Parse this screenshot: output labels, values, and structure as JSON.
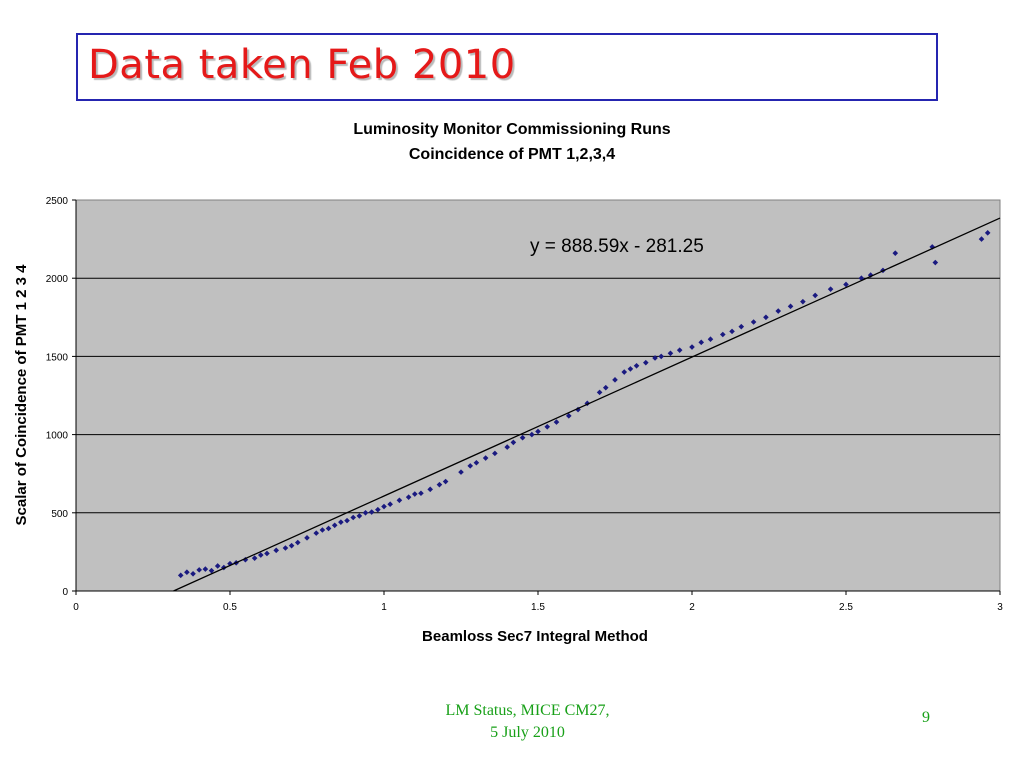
{
  "slide": {
    "title": "Data taken Feb 2010",
    "footer_line1": "LM Status, MICE CM27,",
    "footer_line2": "5 July 2010",
    "page_number": "9"
  },
  "colors": {
    "title": "#e51919",
    "title_border": "#2525b0",
    "plot_background": "#c0c0c0",
    "points": "#1a1a80",
    "footer": "#18a018"
  },
  "chart_data": {
    "type": "scatter",
    "title": "Luminosity Monitor Commissioning Runs",
    "subtitle": "Coincidence of PMT 1,2,3,4",
    "xlabel": "Beamloss Sec7 Integral Method",
    "ylabel": "Scalar of Coincidence of PMT 1 2 3 4",
    "xlim": [
      0,
      3
    ],
    "ylim": [
      0,
      2500
    ],
    "xticks": [
      0,
      0.5,
      1,
      1.5,
      2,
      2.5,
      3
    ],
    "xtick_labels": [
      "0",
      "0.5",
      "1",
      "1.5",
      "2",
      "2.5",
      "3"
    ],
    "yticks": [
      0,
      500,
      1000,
      1500,
      2000,
      2500
    ],
    "ytick_labels": [
      "0",
      "500",
      "1000",
      "1500",
      "2000",
      "2500"
    ],
    "grid": "horizontal",
    "trendline": {
      "slope": 888.59,
      "intercept": -281.25,
      "label": "y = 888.59x - 281.25"
    },
    "series": [
      {
        "points": [
          [
            0.34,
            100
          ],
          [
            0.36,
            120
          ],
          [
            0.38,
            110
          ],
          [
            0.4,
            135
          ],
          [
            0.42,
            140
          ],
          [
            0.44,
            130
          ],
          [
            0.46,
            160
          ],
          [
            0.48,
            150
          ],
          [
            0.5,
            175
          ],
          [
            0.52,
            180
          ],
          [
            0.55,
            200
          ],
          [
            0.58,
            210
          ],
          [
            0.6,
            230
          ],
          [
            0.62,
            240
          ],
          [
            0.65,
            260
          ],
          [
            0.68,
            275
          ],
          [
            0.7,
            290
          ],
          [
            0.72,
            310
          ],
          [
            0.75,
            340
          ],
          [
            0.78,
            370
          ],
          [
            0.8,
            390
          ],
          [
            0.82,
            400
          ],
          [
            0.84,
            420
          ],
          [
            0.86,
            440
          ],
          [
            0.88,
            450
          ],
          [
            0.9,
            470
          ],
          [
            0.92,
            480
          ],
          [
            0.94,
            500
          ],
          [
            0.96,
            505
          ],
          [
            0.98,
            520
          ],
          [
            1.0,
            540
          ],
          [
            1.02,
            555
          ],
          [
            1.05,
            580
          ],
          [
            1.08,
            600
          ],
          [
            1.1,
            620
          ],
          [
            1.12,
            625
          ],
          [
            1.15,
            650
          ],
          [
            1.18,
            680
          ],
          [
            1.2,
            700
          ],
          [
            1.25,
            760
          ],
          [
            1.28,
            800
          ],
          [
            1.3,
            820
          ],
          [
            1.33,
            850
          ],
          [
            1.36,
            880
          ],
          [
            1.4,
            920
          ],
          [
            1.42,
            950
          ],
          [
            1.45,
            980
          ],
          [
            1.48,
            1000
          ],
          [
            1.5,
            1020
          ],
          [
            1.53,
            1050
          ],
          [
            1.56,
            1080
          ],
          [
            1.6,
            1120
          ],
          [
            1.63,
            1160
          ],
          [
            1.66,
            1200
          ],
          [
            1.7,
            1270
          ],
          [
            1.72,
            1300
          ],
          [
            1.75,
            1350
          ],
          [
            1.78,
            1400
          ],
          [
            1.8,
            1420
          ],
          [
            1.82,
            1440
          ],
          [
            1.85,
            1460
          ],
          [
            1.88,
            1490
          ],
          [
            1.9,
            1500
          ],
          [
            1.93,
            1520
          ],
          [
            1.96,
            1540
          ],
          [
            2.0,
            1560
          ],
          [
            2.03,
            1590
          ],
          [
            2.06,
            1610
          ],
          [
            2.1,
            1640
          ],
          [
            2.13,
            1660
          ],
          [
            2.16,
            1690
          ],
          [
            2.2,
            1720
          ],
          [
            2.24,
            1750
          ],
          [
            2.28,
            1790
          ],
          [
            2.32,
            1820
          ],
          [
            2.36,
            1850
          ],
          [
            2.4,
            1890
          ],
          [
            2.45,
            1930
          ],
          [
            2.5,
            1960
          ],
          [
            2.55,
            2000
          ],
          [
            2.58,
            2020
          ],
          [
            2.62,
            2050
          ],
          [
            2.66,
            2160
          ],
          [
            2.78,
            2200
          ],
          [
            2.79,
            2100
          ],
          [
            2.94,
            2250
          ],
          [
            2.96,
            2290
          ]
        ]
      }
    ]
  }
}
